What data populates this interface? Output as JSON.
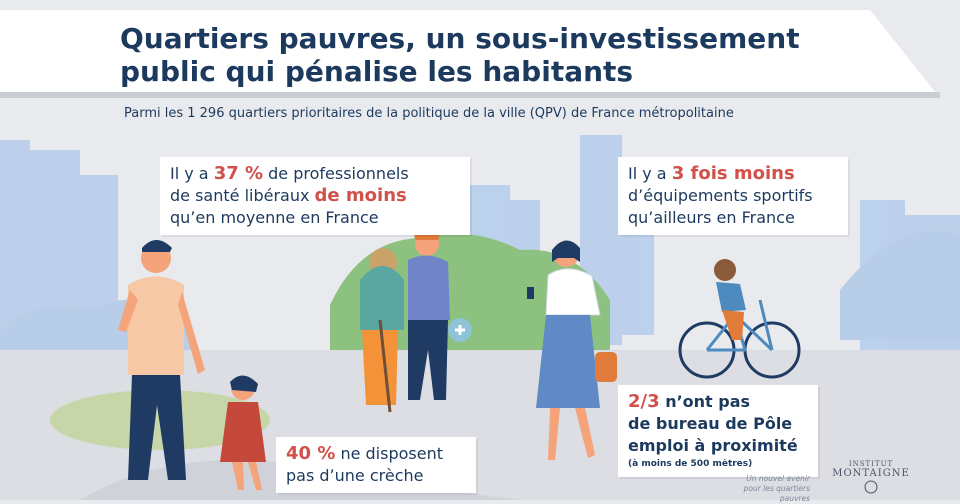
{
  "header": {
    "title_line1": "Quartiers pauvres, un sous-investissement",
    "title_line2": "public qui pénalise les habitants",
    "subtitle": "Parmi les 1 296 quartiers prioritaires de la politique de la ville (QPV) de France métropolitaine"
  },
  "stats": {
    "health": {
      "pre": "Il y a ",
      "figure": "37 %",
      "mid": " de professionnels",
      "line2_pre": "de santé libéraux ",
      "highlight2": "de moins",
      "line3": "qu’en moyenne en France"
    },
    "sports": {
      "pre": "Il y a ",
      "figure": "3 fois moins",
      "line2": "d’équipements sportifs",
      "line3": "qu’ailleurs en France"
    },
    "creche": {
      "figure": "40 %",
      "rest": " ne disposent",
      "line2": "pas d’une crèche"
    },
    "pole_emploi": {
      "figure": "2/3",
      "rest": " n’ont pas",
      "line2": "de bureau de Pôle",
      "line3": "emploi à proximité",
      "note": "(à moins de 500 mètres)"
    }
  },
  "footer": {
    "note_line1": "Un nouvel avenir",
    "note_line2": "pour les quartiers pauvres",
    "logo_line1": "INSTITUT",
    "logo_line2": "MONTAIGNE"
  },
  "colors": {
    "navy": "#1c3a5e",
    "accent_red": "#d1504a",
    "sky_blue": "#aec8ea",
    "park_green": "#8cc17f"
  }
}
